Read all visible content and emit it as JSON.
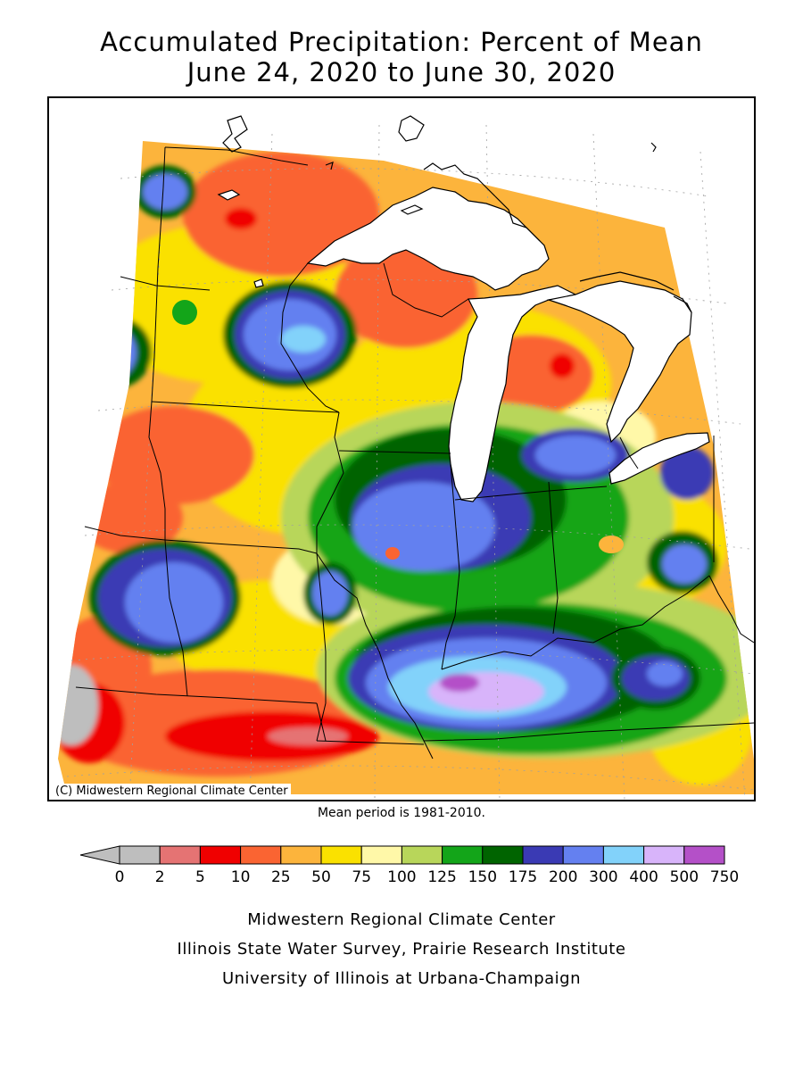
{
  "title": {
    "line1": "Accumulated Precipitation: Percent of Mean",
    "line2": "June 24, 2020 to June 30, 2020"
  },
  "map": {
    "copyright": "(C) Midwestern Regional Climate Center",
    "lake_color": "#ffffff",
    "border_color": "#000000"
  },
  "mean_note": "Mean period is 1981-2010.",
  "legend": {
    "under_color": "#bebebe",
    "bins": [
      {
        "from": "0",
        "to": "2",
        "color": "#bebebe"
      },
      {
        "from": "2",
        "to": "5",
        "color": "#e57373"
      },
      {
        "from": "5",
        "to": "10",
        "color": "#f00000"
      },
      {
        "from": "10",
        "to": "25",
        "color": "#fa6432"
      },
      {
        "from": "25",
        "to": "50",
        "color": "#fcb43c"
      },
      {
        "from": "50",
        "to": "75",
        "color": "#fae100"
      },
      {
        "from": "75",
        "to": "100",
        "color": "#fff8a8"
      },
      {
        "from": "100",
        "to": "125",
        "color": "#b8d65a"
      },
      {
        "from": "125",
        "to": "150",
        "color": "#13a519"
      },
      {
        "from": "150",
        "to": "175",
        "color": "#006400"
      },
      {
        "from": "175",
        "to": "200",
        "color": "#3a3ab4"
      },
      {
        "from": "200",
        "to": "300",
        "color": "#6480f0"
      },
      {
        "from": "300",
        "to": "400",
        "color": "#82d2fa"
      },
      {
        "from": "400",
        "to": "500",
        "color": "#d8b4fa"
      },
      {
        "from": "500",
        "to": "750",
        "color": "#b450c8"
      }
    ],
    "tick_labels": [
      "0",
      "2",
      "5",
      "10",
      "25",
      "50",
      "75",
      "100",
      "125",
      "150",
      "175",
      "200",
      "300",
      "400",
      "500",
      "750"
    ]
  },
  "credits": {
    "line1": "Midwestern Regional Climate Center",
    "line2": "Illinois State Water Survey, Prairie Research Institute",
    "line3": "University of Illinois at Urbana-Champaign"
  }
}
